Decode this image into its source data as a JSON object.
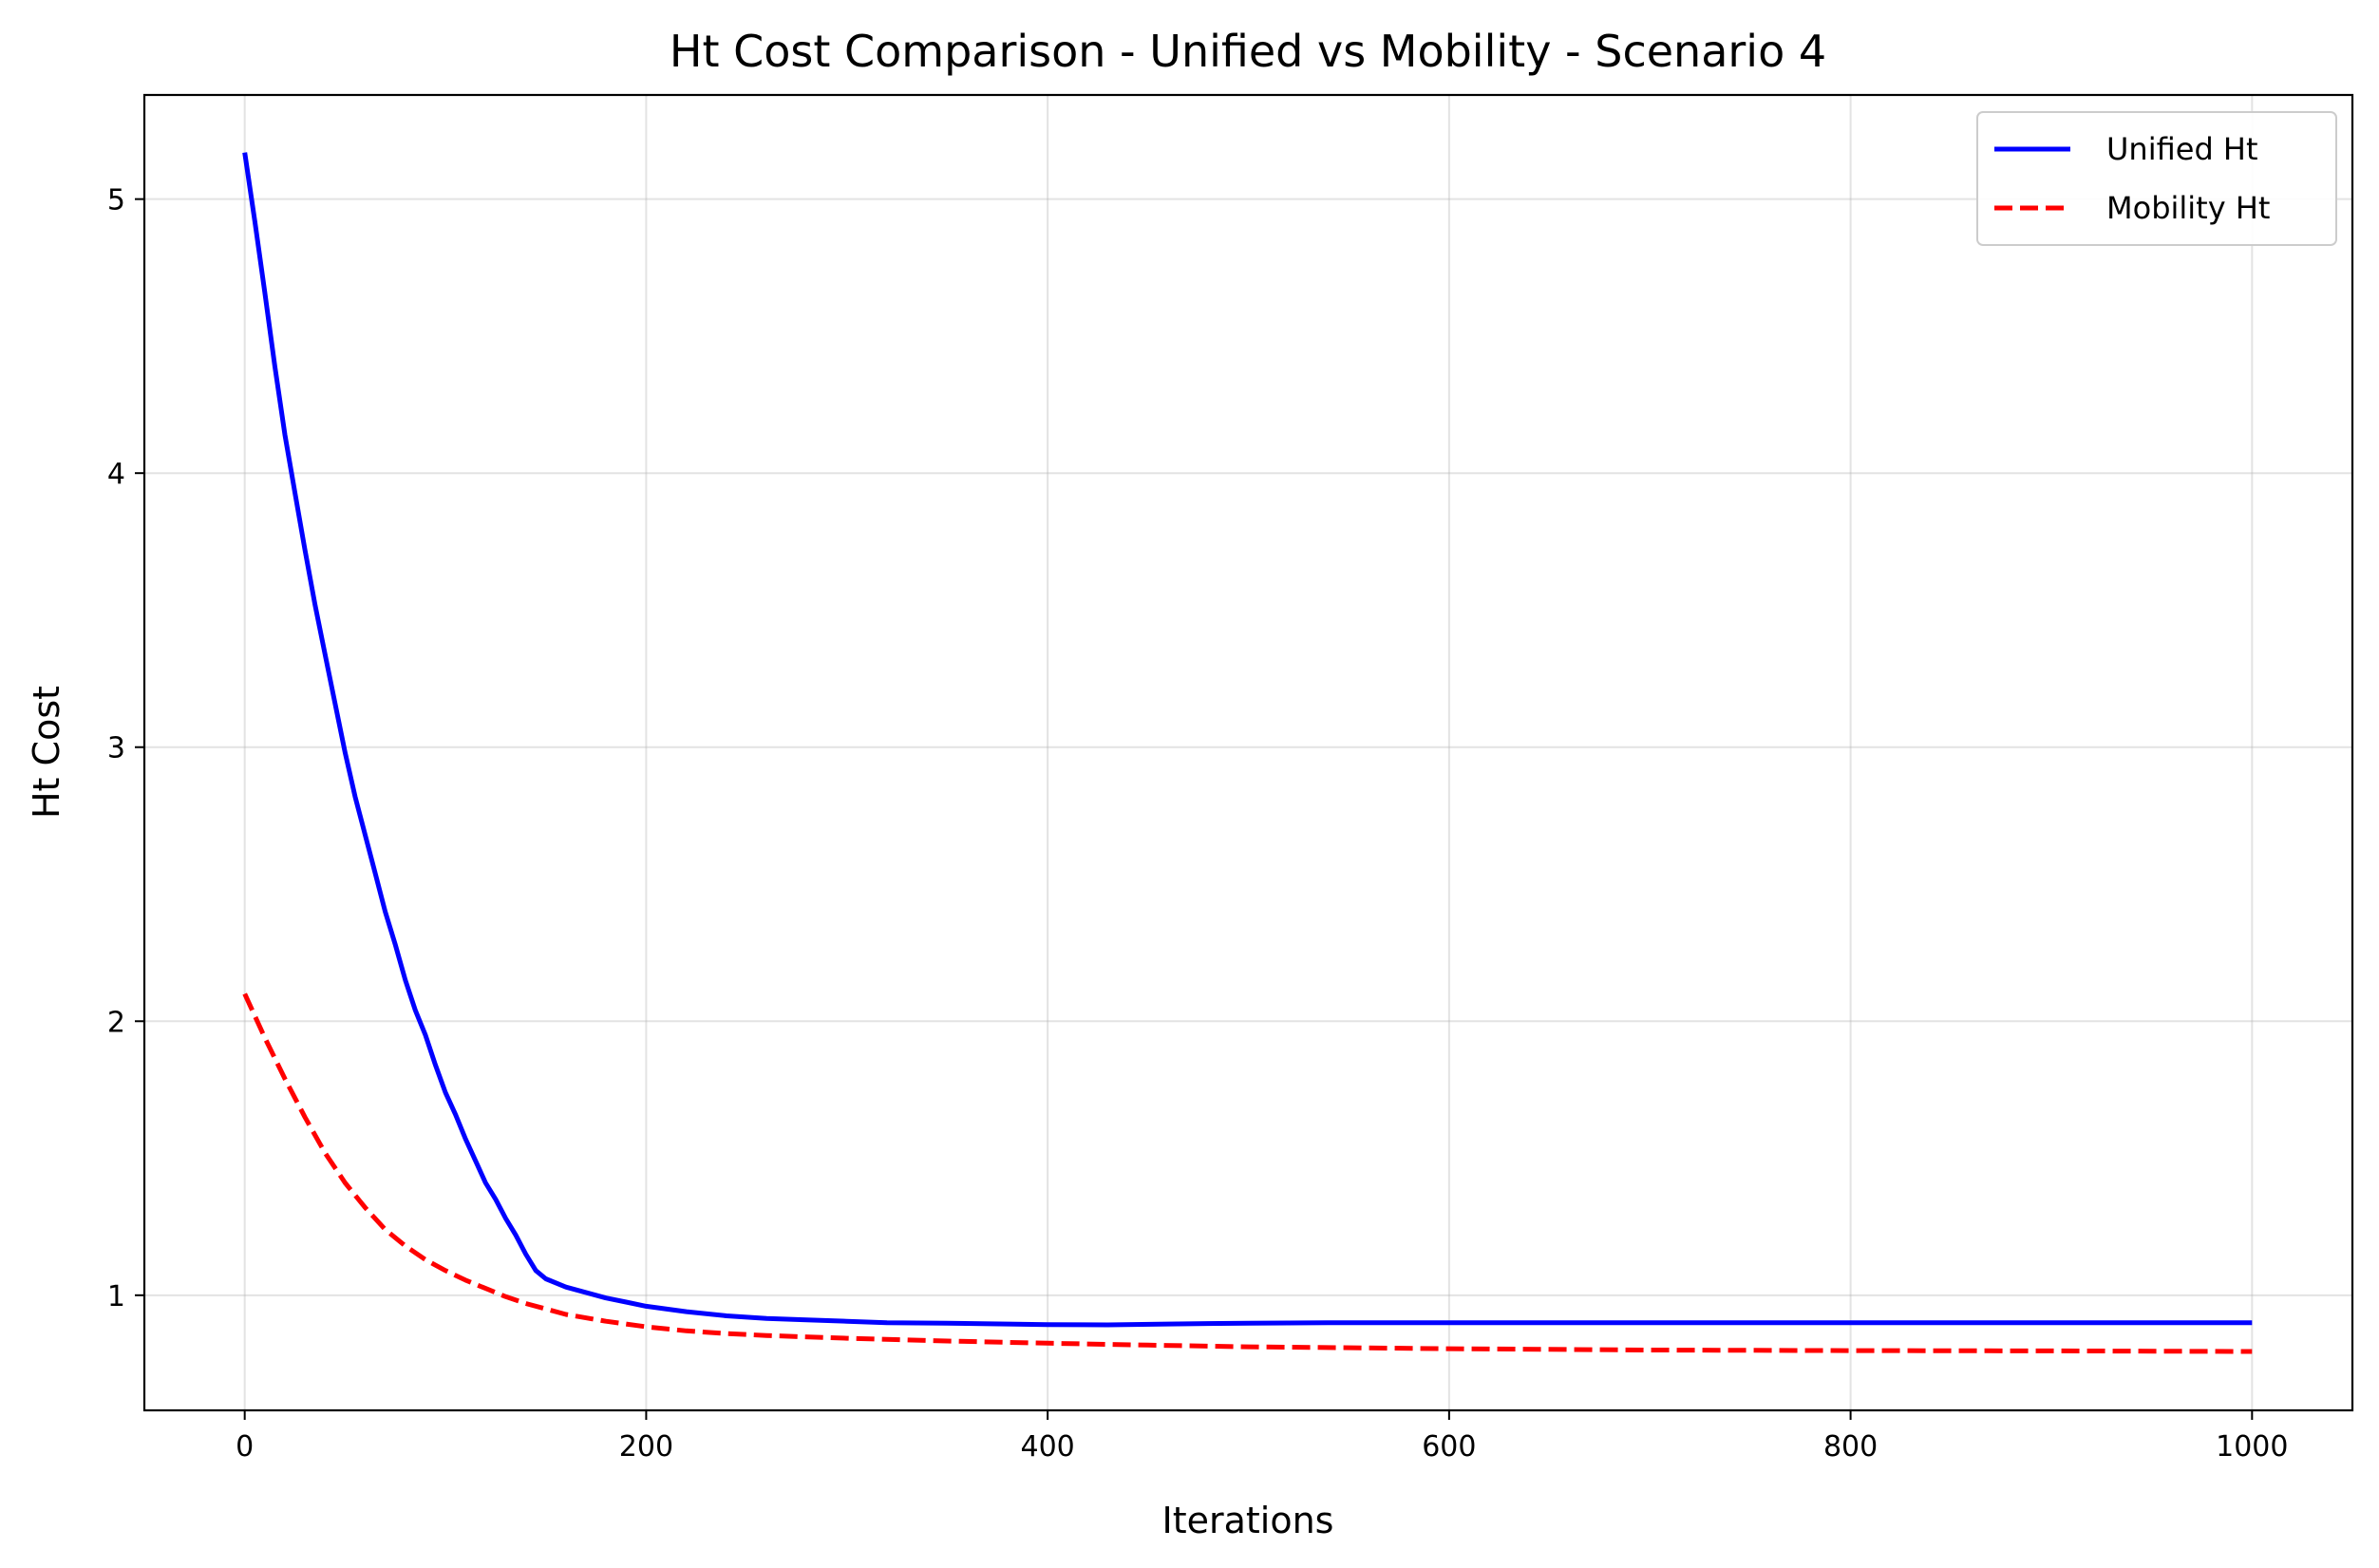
{
  "chart_data": {
    "type": "line",
    "title": "Ht Cost Comparison - Unified vs Mobility - Scenario 4",
    "xlabel": "Iterations",
    "ylabel": "Ht Cost",
    "xlim": [
      -50,
      1050
    ],
    "ylim": [
      0.58,
      5.38
    ],
    "xticks": [
      0,
      200,
      400,
      600,
      800,
      1000
    ],
    "xtick_labels": [
      "0",
      "200",
      "400",
      "600",
      "800",
      "1000"
    ],
    "yticks": [
      1,
      2,
      3,
      4,
      5
    ],
    "ytick_labels": [
      "1",
      "2",
      "3",
      "4",
      "5"
    ],
    "grid": true,
    "legend_position": "top-right",
    "series": [
      {
        "name": "Unified Ht",
        "color": "#0000ff",
        "style": "solid",
        "x": [
          0,
          5,
          10,
          15,
          20,
          25,
          30,
          35,
          40,
          45,
          50,
          55,
          60,
          65,
          70,
          75,
          80,
          85,
          90,
          95,
          100,
          105,
          110,
          115,
          120,
          125,
          130,
          135,
          140,
          145,
          150,
          160,
          170,
          180,
          190,
          200,
          220,
          240,
          260,
          280,
          300,
          320,
          350,
          380,
          400,
          430,
          460,
          500,
          550,
          600,
          700,
          800,
          900,
          1000
        ],
        "y": [
          5.17,
          4.92,
          4.66,
          4.39,
          4.14,
          3.93,
          3.72,
          3.52,
          3.34,
          3.16,
          2.98,
          2.82,
          2.68,
          2.54,
          2.4,
          2.28,
          2.15,
          2.04,
          1.95,
          1.84,
          1.74,
          1.66,
          1.57,
          1.49,
          1.41,
          1.35,
          1.28,
          1.22,
          1.15,
          1.09,
          1.06,
          1.03,
          1.01,
          0.99,
          0.975,
          0.96,
          0.94,
          0.925,
          0.915,
          0.91,
          0.905,
          0.9,
          0.898,
          0.895,
          0.893,
          0.892,
          0.895,
          0.898,
          0.9,
          0.9,
          0.9,
          0.9,
          0.9,
          0.9
        ]
      },
      {
        "name": "Mobility Ht",
        "color": "#ff0000",
        "style": "dashed",
        "x": [
          0,
          10,
          20,
          30,
          40,
          50,
          60,
          70,
          80,
          90,
          100,
          110,
          120,
          130,
          140,
          150,
          160,
          180,
          200,
          220,
          240,
          260,
          300,
          350,
          400,
          450,
          500,
          600,
          700,
          800,
          900,
          1000
        ],
        "y": [
          2.1,
          1.94,
          1.79,
          1.65,
          1.52,
          1.41,
          1.32,
          1.24,
          1.18,
          1.13,
          1.09,
          1.055,
          1.025,
          0.995,
          0.97,
          0.95,
          0.93,
          0.905,
          0.885,
          0.87,
          0.86,
          0.853,
          0.843,
          0.833,
          0.825,
          0.818,
          0.812,
          0.805,
          0.8,
          0.798,
          0.797,
          0.795
        ]
      }
    ]
  }
}
